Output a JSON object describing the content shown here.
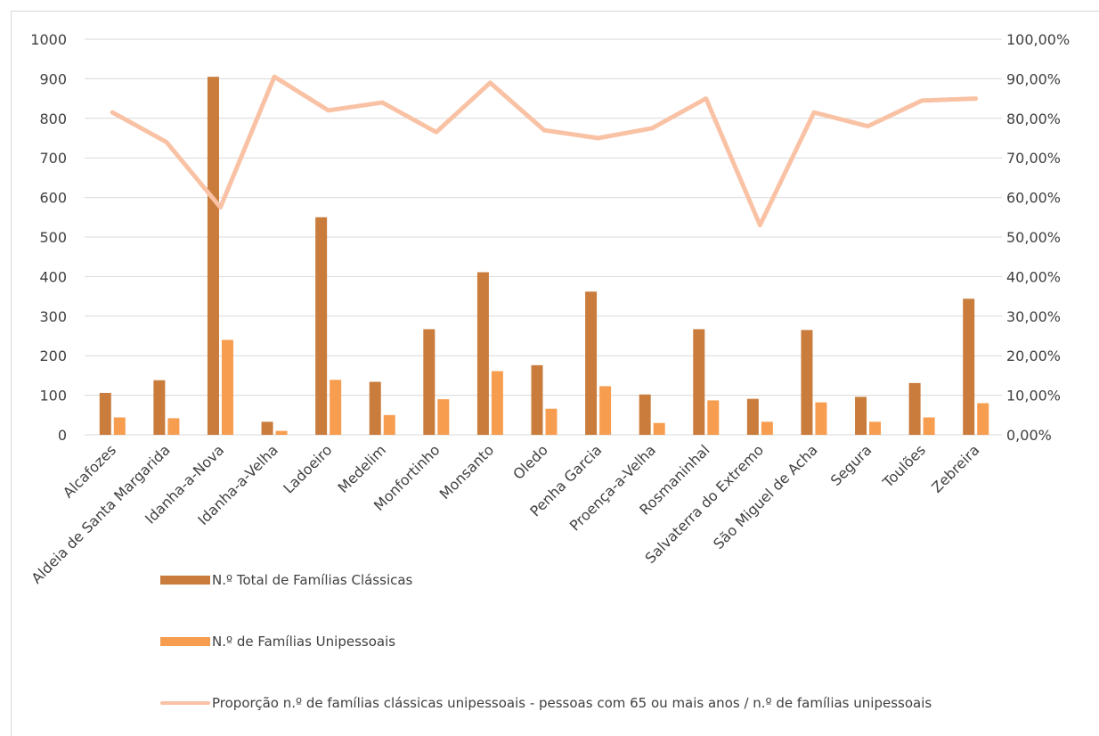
{
  "chart_data": {
    "type": "bar",
    "categories": [
      "Alcafozes",
      "Aldeia de Santa Margarida",
      "Idanha-a-Nova",
      "Idanha-a-Velha",
      "Ladoeiro",
      "Medelim",
      "Monfortinho",
      "Monsanto",
      "Oledo",
      "Penha Garcia",
      "Proença-a-Velha",
      "Rosmaninhal",
      "Salvaterra do Extremo",
      "São Miguel de Acha",
      "Segura",
      "Toulões",
      "Zebreira"
    ],
    "series": [
      {
        "name": "N.º Total de Famílias Clássicas",
        "kind": "bar",
        "axis": "left",
        "color": "#c97c3c",
        "values": [
          106,
          138,
          905,
          33,
          550,
          134,
          267,
          411,
          176,
          362,
          102,
          267,
          91,
          265,
          96,
          131,
          344
        ]
      },
      {
        "name": "N.º de Famílias Unipessoais",
        "kind": "bar",
        "axis": "left",
        "color": "#f79d50",
        "values": [
          44,
          42,
          240,
          10,
          139,
          50,
          90,
          161,
          66,
          123,
          30,
          87,
          33,
          82,
          33,
          44,
          80
        ]
      },
      {
        "name": "Proporção n.º de famílias clássicas unipessoais - pessoas com 65 ou mais anos / n.º de famílias unipessoais",
        "kind": "line",
        "axis": "right",
        "color": "#f9c2a5",
        "values": [
          81.5,
          74,
          57.5,
          90.5,
          82,
          84,
          76.5,
          89,
          77,
          75,
          77.5,
          85,
          53,
          81.5,
          78,
          84.5,
          85
        ]
      }
    ],
    "left_axis": {
      "ylim": [
        0,
        1000
      ],
      "ticks": [
        "0",
        "100",
        "200",
        "300",
        "400",
        "500",
        "600",
        "700",
        "800",
        "900",
        "1000"
      ]
    },
    "right_axis": {
      "ylim": [
        0,
        100
      ],
      "ticks": [
        "0,00%",
        "10,00%",
        "20,00%",
        "30,00%",
        "40,00%",
        "50,00%",
        "60,00%",
        "70,00%",
        "80,00%",
        "90,00%",
        "100,00%"
      ]
    },
    "grid": true,
    "legend_position": "bottom"
  },
  "legend": {
    "total_label": "N.º Total de Famílias Clássicas",
    "unipessoais_label": "N.º de Famílias Unipessoais",
    "proporcao_label": "Proporção n.º de famílias clássicas unipessoais - pessoas com 65 ou mais anos / n.º de famílias unipessoais"
  },
  "colors": {
    "bar_total": "#c97c3c",
    "bar_unipessoais": "#f79d50",
    "line_proporcao": "#f9c2a5",
    "grid": "#d9d9d9"
  }
}
